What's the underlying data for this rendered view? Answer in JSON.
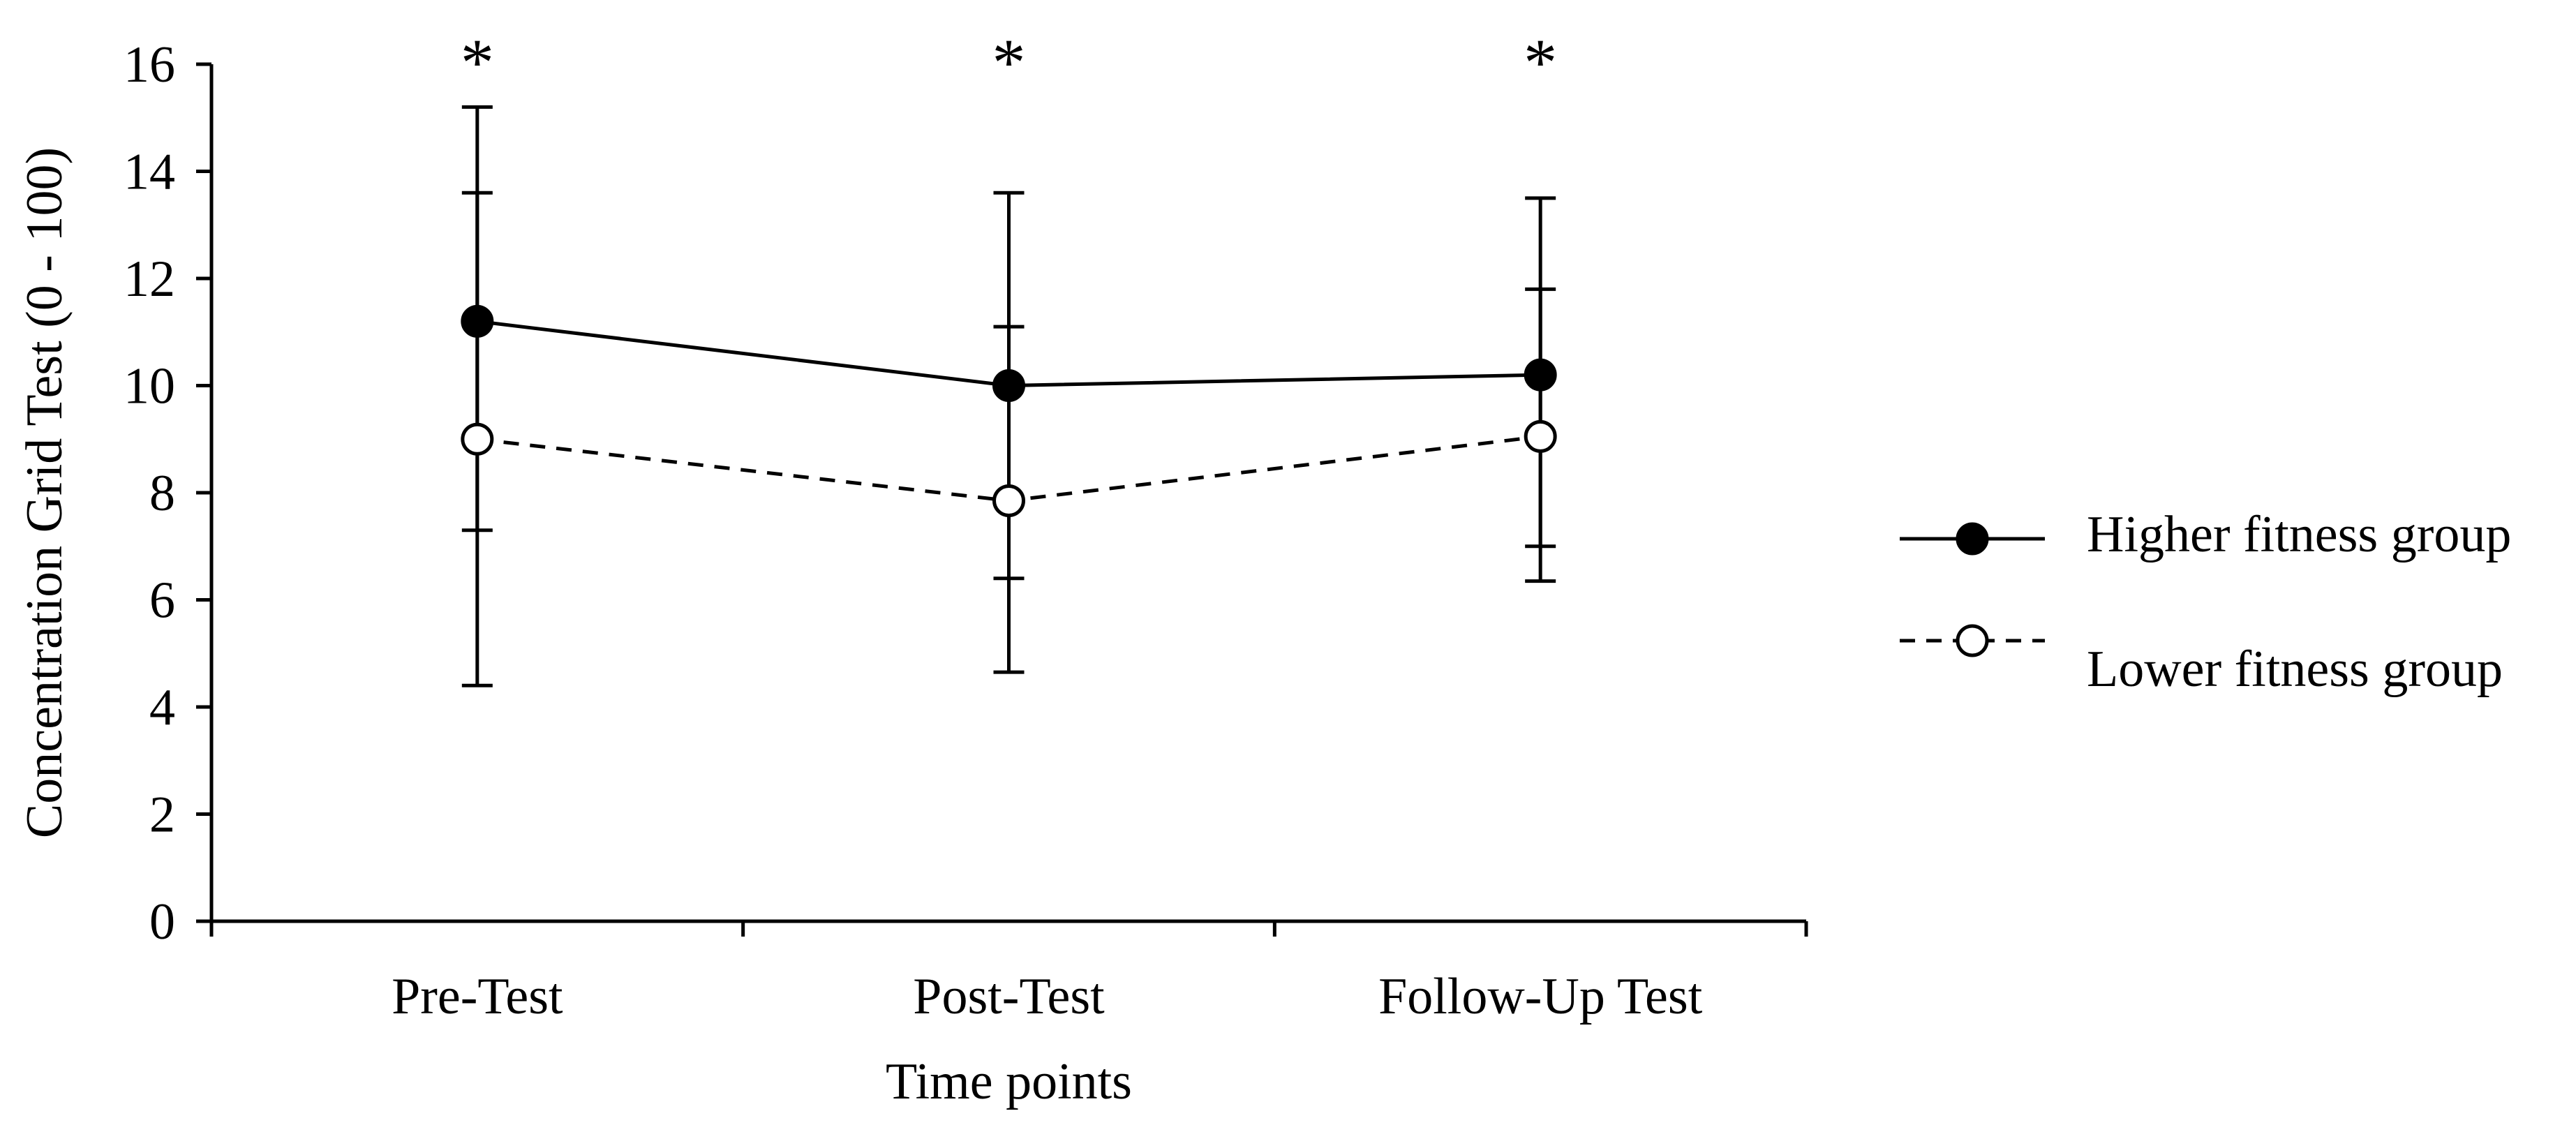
{
  "chart_data": {
    "type": "line",
    "title": "",
    "xlabel": "Time points",
    "ylabel": "Concentration Grid Test (0 - 100)",
    "categories": [
      "Pre-Test",
      "Post-Test",
      "Follow-Up Test"
    ],
    "ylim": [
      0,
      16
    ],
    "yticks": [
      0,
      2,
      4,
      6,
      8,
      10,
      12,
      14,
      16
    ],
    "grid": false,
    "legend_position": "right",
    "series": [
      {
        "name": "Higher fitness group",
        "marker": "filled-circle",
        "line_style": "solid",
        "values": [
          11.2,
          10.0,
          10.2
        ],
        "error_upper": [
          15.2,
          13.6,
          13.5
        ],
        "error_lower": [
          7.3,
          6.4,
          7.0
        ]
      },
      {
        "name": "Lower fitness group",
        "marker": "open-circle",
        "line_style": "dashed",
        "values": [
          9.0,
          7.85,
          9.05
        ],
        "error_upper": [
          13.6,
          11.1,
          11.8
        ],
        "error_lower": [
          4.4,
          4.65,
          6.35
        ]
      }
    ],
    "annotations": [
      "*",
      "*",
      "*"
    ]
  }
}
